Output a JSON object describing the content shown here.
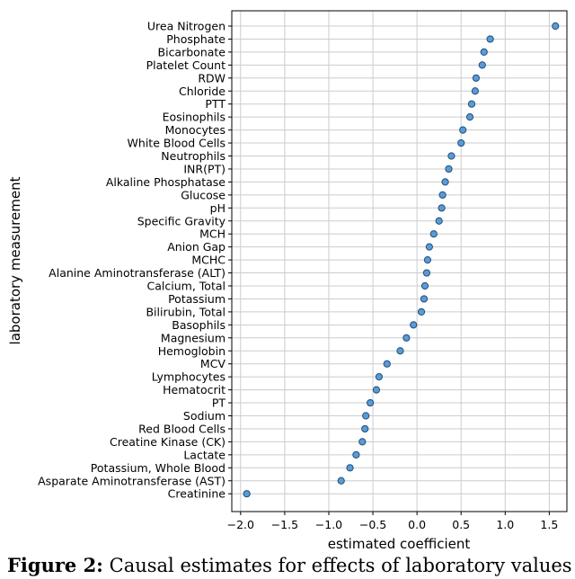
{
  "caption": {
    "label": "Figure 2:",
    "text": "Causal estimates for effects of laboratory values"
  },
  "chart_data": {
    "type": "scatter",
    "xlabel": "estimated coefficient",
    "ylabel": "laboratory measurement",
    "xlim": [
      -2.1,
      1.7
    ],
    "xticks": [
      -2.0,
      -1.5,
      -1.0,
      -0.5,
      0.0,
      0.5,
      1.0,
      1.5
    ],
    "xtick_labels": [
      "−2.0",
      "−1.5",
      "−1.0",
      "−0.5",
      "0.0",
      "0.5",
      "1.0",
      "1.5"
    ],
    "grid": true,
    "point_color": "#5b9bd5",
    "point_edge_color": "#1f4e79",
    "grid_color": "#cccccc",
    "categories": [
      "Urea Nitrogen",
      "Phosphate",
      "Bicarbonate",
      "Platelet Count",
      "RDW",
      "Chloride",
      "PTT",
      "Eosinophils",
      "Monocytes",
      "White Blood Cells",
      "Neutrophils",
      "INR(PT)",
      "Alkaline Phosphatase",
      "Glucose",
      "pH",
      "Specific Gravity",
      "MCH",
      "Anion Gap",
      "MCHC",
      "Alanine Aminotransferase (ALT)",
      "Calcium, Total",
      "Potassium",
      "Bilirubin, Total",
      "Basophils",
      "Magnesium",
      "Hemoglobin",
      "MCV",
      "Lymphocytes",
      "Hematocrit",
      "PT",
      "Sodium",
      "Red Blood Cells",
      "Creatine Kinase (CK)",
      "Lactate",
      "Potassium, Whole Blood",
      "Asparate Aminotransferase (AST)",
      "Creatinine"
    ],
    "values": [
      1.57,
      0.83,
      0.76,
      0.74,
      0.67,
      0.66,
      0.62,
      0.6,
      0.52,
      0.5,
      0.39,
      0.36,
      0.32,
      0.29,
      0.28,
      0.25,
      0.19,
      0.14,
      0.12,
      0.11,
      0.09,
      0.08,
      0.05,
      -0.04,
      -0.12,
      -0.19,
      -0.34,
      -0.43,
      -0.46,
      -0.53,
      -0.58,
      -0.59,
      -0.62,
      -0.69,
      -0.76,
      -0.86,
      -1.93
    ]
  }
}
